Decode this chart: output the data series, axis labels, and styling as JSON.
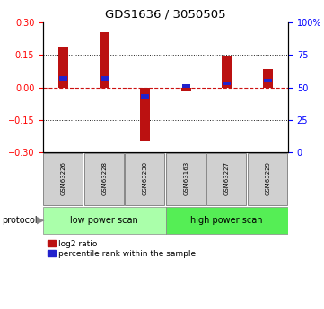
{
  "title": "GDS1636 / 3050505",
  "samples": [
    "GSM63226",
    "GSM63228",
    "GSM63230",
    "GSM63163",
    "GSM63227",
    "GSM63229"
  ],
  "log2_ratio": [
    0.185,
    0.255,
    -0.245,
    -0.02,
    0.145,
    0.085
  ],
  "percentile_rank": [
    57,
    57,
    43,
    51,
    53,
    55
  ],
  "ylim_left": [
    -0.3,
    0.3
  ],
  "ylim_right": [
    0,
    100
  ],
  "yticks_left": [
    -0.3,
    -0.15,
    0,
    0.15,
    0.3
  ],
  "yticks_right": [
    0,
    25,
    50,
    75,
    100
  ],
  "ytick_labels_right": [
    "0",
    "25",
    "50",
    "75",
    "100%"
  ],
  "bar_color": "#bb1111",
  "blue_color": "#2222cc",
  "dashed_color": "#cc1111",
  "dotted_color": "#222222",
  "groups": [
    {
      "label": "low power scan",
      "color": "#aaffaa"
    },
    {
      "label": "high power scan",
      "color": "#55ee55"
    }
  ],
  "protocol_label": "protocol",
  "legend_labels": [
    "log2 ratio",
    "percentile rank within the sample"
  ],
  "bar_width": 0.25,
  "figsize": [
    3.61,
    3.45
  ],
  "dpi": 100
}
